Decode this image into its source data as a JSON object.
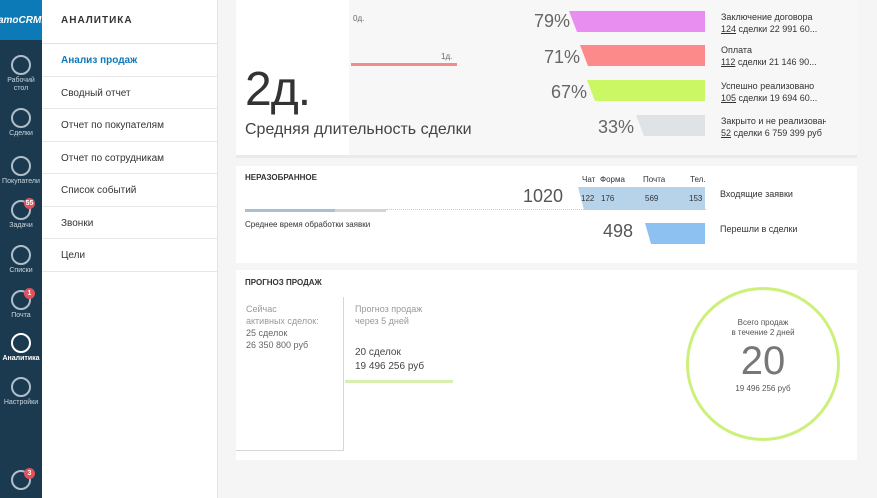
{
  "app": {
    "logo": "amoCRM.",
    "nav": [
      {
        "label": "Рабочий стол",
        "icon": "dashboard-icon"
      },
      {
        "label": "Сделки",
        "icon": "dollar-icon"
      },
      {
        "label": "Покупатели",
        "icon": "buyers-icon"
      },
      {
        "label": "Задачи",
        "icon": "tasks-icon",
        "badge": "55"
      },
      {
        "label": "Списки",
        "icon": "lists-icon"
      },
      {
        "label": "Почта",
        "icon": "mail-icon",
        "badge": "1"
      },
      {
        "label": "Аналитика",
        "icon": "analytics-icon"
      },
      {
        "label": "Настройки",
        "icon": "settings-icon"
      }
    ],
    "chat_badge": "3"
  },
  "menu": {
    "title": "АНАЛИТИКА",
    "items": [
      "Анализ продаж",
      "Сводный отчет",
      "Отчет по покупателям",
      "Отчет по сотрудникам",
      "Список событий",
      "Звонки",
      "Цели"
    ]
  },
  "funnel": {
    "big_value": "2д.",
    "big_label": "Средняя длительность сделки",
    "marker_0": "0д.",
    "marker_1": "1д.",
    "stages": [
      {
        "pct": "79%",
        "name": "Заключение договора",
        "count": "124",
        "sub": " сделки 22 991 60...",
        "color": "#e88ef0"
      },
      {
        "pct": "71%",
        "name": "Оплата",
        "count": "112",
        "sub": " сделки 21 146 90...",
        "color": "#fd8a8a"
      },
      {
        "pct": "67%",
        "name": "Успешно реализовано",
        "count": "105",
        "sub": " сделки 19 694 60...",
        "color": "#ccf764"
      },
      {
        "pct": "33%",
        "name": "Закрыто и не реализовано",
        "count": "52",
        "sub": " сделки 6 759 399 руб",
        "color": "#dfe3e6"
      }
    ]
  },
  "unsorted": {
    "title": "НЕРАЗОБРАННОЕ",
    "avg_label": "Среднее время обработки заявки",
    "incoming_total": "1020",
    "incoming_label": "Входящие заявки",
    "converted_total": "498",
    "converted_label": "Перешли в сделки",
    "sources": [
      {
        "name": "Чат",
        "value": "122"
      },
      {
        "name": "Форма",
        "value": "176"
      },
      {
        "name": "Почта",
        "value": "569"
      },
      {
        "name": "Тел.",
        "value": "153"
      }
    ]
  },
  "forecast": {
    "title": "ПРОГНОЗ ПРОДАЖ",
    "now_label_1": "Сейчас",
    "now_label_2": "активных сделок:",
    "now_deals": "25 сделок",
    "now_sum": "26 350 800 руб",
    "fc_label_1": "Прогноз продаж",
    "fc_label_2": "через 5 дней",
    "fc_deals": "20 сделок",
    "fc_sum": "19 496 256 руб",
    "circle_label_1": "Всего продаж",
    "circle_label_2": "в течение 2 дней",
    "circle_value": "20",
    "circle_sum": "19 496 256 руб"
  }
}
